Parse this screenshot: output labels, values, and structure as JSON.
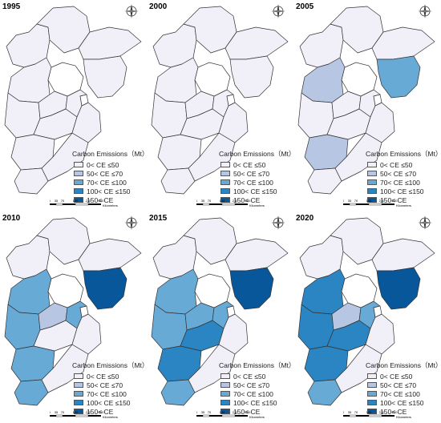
{
  "colors": {
    "c0": "#f1eff8",
    "c1": "#b7c6e2",
    "c2": "#68aad6",
    "c3": "#2b85c2",
    "c4": "#08579a",
    "stroke": "#333333"
  },
  "legend": {
    "title": "Carbon Emissions（Mt）",
    "items": [
      "0< CE ≤50",
      "50< CE ≤70",
      "70< CE ≤100",
      "100< CE ≤150",
      "150< CE"
    ]
  },
  "scale": {
    "ticks": [
      "0",
      "35",
      "70",
      "140",
      "210",
      "280"
    ],
    "unit": "Kilometers"
  },
  "panels": [
    {
      "year": "1995",
      "classes": [
        0,
        0,
        0,
        0,
        0,
        0,
        0,
        0,
        0,
        0,
        0,
        0,
        0
      ]
    },
    {
      "year": "2000",
      "classes": [
        0,
        0,
        0,
        0,
        0,
        0,
        0,
        0,
        0,
        0,
        0,
        0,
        0
      ]
    },
    {
      "year": "2005",
      "classes": [
        0,
        0,
        0,
        1,
        0,
        0,
        0,
        0,
        1,
        0,
        0,
        2,
        0
      ]
    },
    {
      "year": "2010",
      "classes": [
        0,
        0,
        0,
        2,
        2,
        1,
        2,
        0,
        2,
        0,
        2,
        4,
        0
      ]
    },
    {
      "year": "2015",
      "classes": [
        0,
        0,
        0,
        2,
        2,
        2,
        2,
        3,
        3,
        0,
        2,
        4,
        0
      ]
    },
    {
      "year": "2020",
      "classes": [
        0,
        0,
        0,
        3,
        3,
        1,
        2,
        3,
        3,
        0,
        2,
        4,
        0
      ]
    }
  ]
}
